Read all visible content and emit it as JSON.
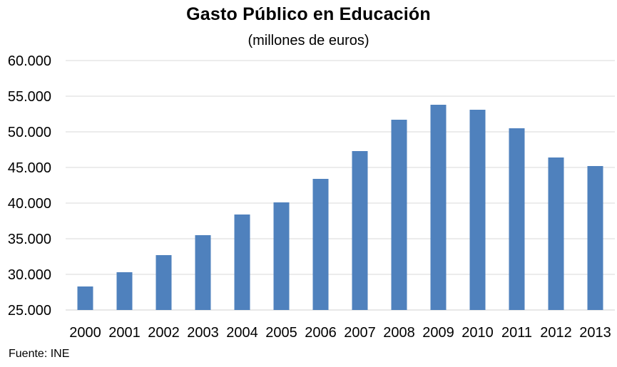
{
  "title": "Gasto Público en Educación",
  "subtitle": "(millones de euros)",
  "source": "Fuente: INE",
  "chart_data": {
    "type": "bar",
    "title": "Gasto Público en Educación",
    "subtitle": "(millones de euros)",
    "xlabel": "",
    "ylabel": "",
    "categories": [
      "2000",
      "2001",
      "2002",
      "2003",
      "2004",
      "2005",
      "2006",
      "2007",
      "2008",
      "2009",
      "2010",
      "2011",
      "2012",
      "2013"
    ],
    "values": [
      28300,
      30300,
      32700,
      35500,
      38400,
      40100,
      43400,
      47300,
      51700,
      53800,
      53100,
      50500,
      46400,
      45200
    ],
    "ylim": [
      25000,
      60000
    ],
    "yticks": [
      25000,
      30000,
      35000,
      40000,
      45000,
      50000,
      55000,
      60000
    ],
    "ytick_labels": [
      "25.000",
      "30.000",
      "35.000",
      "40.000",
      "45.000",
      "50.000",
      "55.000",
      "60.000"
    ],
    "grid": true,
    "legend": "none",
    "colors": {
      "bar": "#4f81bd",
      "grid": "#d9d9d9"
    }
  }
}
